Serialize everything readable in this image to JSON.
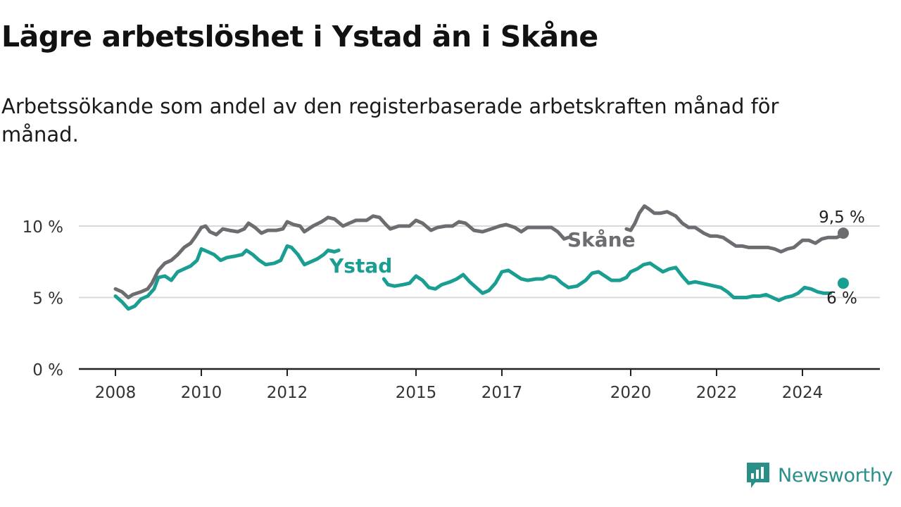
{
  "title": "Lägre arbetslöshet i Ystad än i Skåne",
  "subtitle": "Arbetssökande som andel av den registerbaserade arbetskraften månad för månad.",
  "brand": {
    "name": "Newsworthy",
    "logo_icon": "newsworthy-logo-icon"
  },
  "colors": {
    "skane": "#6d6c71",
    "ystad": "#1a9e92",
    "grid": "#d9d9d9",
    "axis": "#222222",
    "brand": "#2a8f88"
  },
  "chart_data": {
    "type": "line",
    "title": "Lägre arbetslöshet i Ystad än i Skåne",
    "subtitle": "Arbetssökande som andel av den registerbaserade arbetskraften månad för månad.",
    "xlabel": "",
    "ylabel": "",
    "xlim": [
      2007.6,
      2025.5
    ],
    "ylim": [
      0,
      12
    ],
    "grid": true,
    "legend": "inline labels",
    "x_ticks": [
      2008,
      2010,
      2012,
      2015,
      2017,
      2020,
      2022,
      2024
    ],
    "x_tick_labels": [
      "2008",
      "2010",
      "2012",
      "2015",
      "2017",
      "2020",
      "2022",
      "2024"
    ],
    "y_ticks": [
      0,
      5,
      10
    ],
    "y_tick_labels": [
      "0 %",
      "5 %",
      "10 %"
    ],
    "series": [
      {
        "name": "Skåne",
        "color": "#6d6c71",
        "label": "Skåne",
        "end_label": "9,5 %",
        "segments": [
          [
            [
              2008.0,
              5.6
            ],
            [
              2008.15,
              5.4
            ],
            [
              2008.3,
              5.0
            ],
            [
              2008.4,
              5.2
            ],
            [
              2008.6,
              5.4
            ],
            [
              2008.75,
              5.6
            ],
            [
              2008.85,
              6.0
            ],
            [
              2009.0,
              6.9
            ],
            [
              2009.15,
              7.4
            ],
            [
              2009.3,
              7.6
            ],
            [
              2009.45,
              8.0
            ],
            [
              2009.6,
              8.5
            ],
            [
              2009.75,
              8.8
            ],
            [
              2009.85,
              9.2
            ],
            [
              2010.0,
              9.9
            ],
            [
              2010.1,
              10.0
            ],
            [
              2010.2,
              9.6
            ],
            [
              2010.35,
              9.4
            ],
            [
              2010.5,
              9.8
            ],
            [
              2010.65,
              9.7
            ],
            [
              2010.85,
              9.6
            ],
            [
              2011.0,
              9.8
            ],
            [
              2011.1,
              10.2
            ],
            [
              2011.25,
              9.9
            ],
            [
              2011.4,
              9.5
            ],
            [
              2011.55,
              9.7
            ],
            [
              2011.75,
              9.7
            ],
            [
              2011.9,
              9.8
            ],
            [
              2012.0,
              10.3
            ],
            [
              2012.15,
              10.1
            ],
            [
              2012.3,
              10.0
            ],
            [
              2012.4,
              9.6
            ],
            [
              2012.6,
              10.0
            ],
            [
              2012.8,
              10.3
            ],
            [
              2012.95,
              10.6
            ],
            [
              2013.1,
              10.5
            ],
            [
              2013.3,
              10.0
            ],
            [
              2013.45,
              10.2
            ],
            [
              2013.6,
              10.4
            ],
            [
              2013.85,
              10.4
            ],
            [
              2014.0,
              10.7
            ],
            [
              2014.15,
              10.6
            ],
            [
              2014.3,
              10.1
            ],
            [
              2014.4,
              9.8
            ],
            [
              2014.6,
              10.0
            ],
            [
              2014.85,
              10.0
            ],
            [
              2015.0,
              10.4
            ],
            [
              2015.15,
              10.2
            ],
            [
              2015.35,
              9.7
            ],
            [
              2015.5,
              9.9
            ],
            [
              2015.7,
              10.0
            ],
            [
              2015.85,
              10.0
            ],
            [
              2016.0,
              10.3
            ],
            [
              2016.15,
              10.2
            ],
            [
              2016.35,
              9.7
            ],
            [
              2016.55,
              9.6
            ],
            [
              2016.75,
              9.8
            ],
            [
              2016.95,
              10.0
            ],
            [
              2017.1,
              10.1
            ],
            [
              2017.3,
              9.9
            ],
            [
              2017.45,
              9.6
            ],
            [
              2017.6,
              9.9
            ],
            [
              2017.8,
              9.9
            ],
            [
              2017.95,
              9.9
            ],
            [
              2018.15,
              9.9
            ],
            [
              2018.3,
              9.6
            ],
            [
              2018.45,
              9.1
            ],
            [
              2018.55,
              9.2
            ]
          ],
          [
            [
              2019.9,
              9.8
            ],
            [
              2020.0,
              9.7
            ],
            [
              2020.1,
              10.2
            ],
            [
              2020.2,
              10.9
            ],
            [
              2020.32,
              11.4
            ],
            [
              2020.42,
              11.2
            ],
            [
              2020.55,
              10.9
            ],
            [
              2020.7,
              10.9
            ],
            [
              2020.85,
              11.0
            ],
            [
              2021.05,
              10.7
            ],
            [
              2021.2,
              10.2
            ],
            [
              2021.35,
              9.9
            ],
            [
              2021.5,
              9.9
            ],
            [
              2021.7,
              9.5
            ],
            [
              2021.85,
              9.3
            ],
            [
              2022.0,
              9.3
            ],
            [
              2022.15,
              9.2
            ],
            [
              2022.3,
              8.9
            ],
            [
              2022.45,
              8.6
            ],
            [
              2022.6,
              8.6
            ],
            [
              2022.75,
              8.5
            ],
            [
              2022.9,
              8.5
            ],
            [
              2023.05,
              8.5
            ],
            [
              2023.2,
              8.5
            ],
            [
              2023.35,
              8.4
            ],
            [
              2023.5,
              8.2
            ],
            [
              2023.65,
              8.4
            ],
            [
              2023.8,
              8.5
            ],
            [
              2024.0,
              9.0
            ],
            [
              2024.15,
              9.0
            ],
            [
              2024.3,
              8.8
            ],
            [
              2024.45,
              9.1
            ],
            [
              2024.6,
              9.2
            ],
            [
              2024.8,
              9.2
            ],
            [
              2024.95,
              9.4
            ]
          ]
        ],
        "end_point": [
          2024.95,
          9.5
        ]
      },
      {
        "name": "Ystad",
        "color": "#1a9e92",
        "label": "Ystad",
        "end_label": "6 %",
        "segments": [
          [
            [
              2008.0,
              5.1
            ],
            [
              2008.15,
              4.7
            ],
            [
              2008.3,
              4.2
            ],
            [
              2008.45,
              4.4
            ],
            [
              2008.6,
              4.9
            ],
            [
              2008.75,
              5.1
            ],
            [
              2008.9,
              5.6
            ],
            [
              2009.0,
              6.4
            ],
            [
              2009.15,
              6.5
            ],
            [
              2009.3,
              6.2
            ],
            [
              2009.45,
              6.8
            ],
            [
              2009.6,
              7.0
            ],
            [
              2009.75,
              7.2
            ],
            [
              2009.9,
              7.6
            ],
            [
              2010.0,
              8.4
            ],
            [
              2010.15,
              8.2
            ],
            [
              2010.3,
              8.0
            ],
            [
              2010.45,
              7.6
            ],
            [
              2010.6,
              7.8
            ],
            [
              2010.8,
              7.9
            ],
            [
              2010.95,
              8.0
            ],
            [
              2011.05,
              8.3
            ],
            [
              2011.2,
              8.0
            ],
            [
              2011.35,
              7.6
            ],
            [
              2011.5,
              7.3
            ],
            [
              2011.7,
              7.4
            ],
            [
              2011.85,
              7.6
            ],
            [
              2012.0,
              8.6
            ],
            [
              2012.1,
              8.5
            ],
            [
              2012.25,
              8.0
            ],
            [
              2012.4,
              7.3
            ],
            [
              2012.55,
              7.5
            ],
            [
              2012.7,
              7.7
            ],
            [
              2012.85,
              8.0
            ],
            [
              2012.95,
              8.3
            ],
            [
              2013.1,
              8.2
            ],
            [
              2013.2,
              8.3
            ]
          ],
          [
            [
              2014.25,
              6.3
            ],
            [
              2014.35,
              5.9
            ],
            [
              2014.5,
              5.8
            ],
            [
              2014.7,
              5.9
            ],
            [
              2014.85,
              6.0
            ],
            [
              2015.0,
              6.5
            ],
            [
              2015.15,
              6.2
            ],
            [
              2015.3,
              5.7
            ],
            [
              2015.45,
              5.6
            ],
            [
              2015.6,
              5.9
            ],
            [
              2015.8,
              6.1
            ],
            [
              2015.95,
              6.3
            ],
            [
              2016.1,
              6.6
            ],
            [
              2016.25,
              6.1
            ],
            [
              2016.4,
              5.7
            ],
            [
              2016.55,
              5.3
            ],
            [
              2016.7,
              5.5
            ],
            [
              2016.85,
              6.0
            ],
            [
              2017.0,
              6.8
            ],
            [
              2017.15,
              6.9
            ],
            [
              2017.3,
              6.6
            ],
            [
              2017.45,
              6.3
            ],
            [
              2017.6,
              6.2
            ],
            [
              2017.8,
              6.3
            ],
            [
              2017.95,
              6.3
            ],
            [
              2018.1,
              6.5
            ],
            [
              2018.25,
              6.4
            ],
            [
              2018.4,
              6.0
            ],
            [
              2018.55,
              5.7
            ],
            [
              2018.75,
              5.8
            ],
            [
              2018.95,
              6.2
            ],
            [
              2019.1,
              6.7
            ],
            [
              2019.25,
              6.8
            ],
            [
              2019.4,
              6.5
            ],
            [
              2019.55,
              6.2
            ],
            [
              2019.75,
              6.2
            ],
            [
              2019.9,
              6.4
            ],
            [
              2020.0,
              6.8
            ],
            [
              2020.15,
              7.0
            ],
            [
              2020.3,
              7.3
            ],
            [
              2020.45,
              7.4
            ],
            [
              2020.6,
              7.1
            ],
            [
              2020.75,
              6.8
            ],
            [
              2020.9,
              7.0
            ],
            [
              2021.05,
              7.1
            ],
            [
              2021.2,
              6.5
            ],
            [
              2021.35,
              6.0
            ],
            [
              2021.5,
              6.1
            ],
            [
              2021.65,
              6.0
            ],
            [
              2021.8,
              5.9
            ],
            [
              2021.95,
              5.8
            ],
            [
              2022.1,
              5.7
            ],
            [
              2022.25,
              5.4
            ],
            [
              2022.4,
              5.0
            ],
            [
              2022.55,
              5.0
            ],
            [
              2022.7,
              5.0
            ],
            [
              2022.85,
              5.1
            ],
            [
              2023.0,
              5.1
            ],
            [
              2023.15,
              5.2
            ],
            [
              2023.3,
              5.0
            ],
            [
              2023.45,
              4.8
            ],
            [
              2023.6,
              5.0
            ],
            [
              2023.75,
              5.1
            ],
            [
              2023.9,
              5.3
            ],
            [
              2024.05,
              5.7
            ],
            [
              2024.2,
              5.6
            ],
            [
              2024.35,
              5.4
            ],
            [
              2024.5,
              5.3
            ],
            [
              2024.65,
              5.3
            ]
          ]
        ],
        "end_point": [
          2024.95,
          6.0
        ]
      }
    ]
  }
}
